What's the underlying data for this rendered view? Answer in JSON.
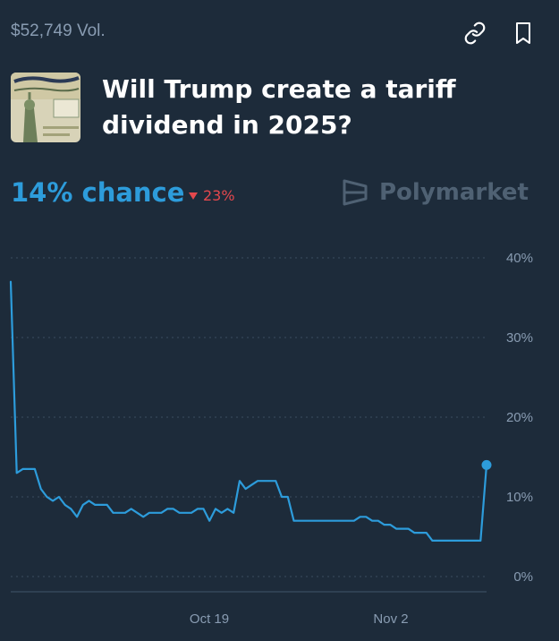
{
  "header": {
    "volume": "$52,749 Vol.",
    "link_icon": "link-icon",
    "bookmark_icon": "bookmark-icon"
  },
  "market": {
    "title": "Will Trump create a tariff dividend in 2025?",
    "chance": "14% chance",
    "change": "23%",
    "change_direction": "down",
    "brand": "Polymarket",
    "thumbnail_icon": "treasury-check-image"
  },
  "colors": {
    "background": "#1d2b3a",
    "accent": "#2d9cdb",
    "negative": "#e5484d",
    "muted": "#899cb2"
  },
  "chart_data": {
    "type": "line",
    "x_ticks": [
      "Oct 19",
      "Nov 2"
    ],
    "y_ticks": [
      "0%",
      "10%",
      "20%",
      "30%",
      "40%"
    ],
    "ylim": [
      0,
      40
    ],
    "grid": true,
    "series": [
      {
        "values": [
          37,
          13,
          13.5,
          13.5,
          13.5,
          11,
          10,
          9.5,
          10,
          9,
          8.5,
          7.5,
          9,
          9.5,
          9,
          9,
          9,
          8,
          8,
          8,
          8.5,
          8,
          7.5,
          8,
          8,
          8,
          8.5,
          8.5,
          8,
          8,
          8,
          8.5,
          8.5,
          7,
          8.5,
          8,
          8.5,
          8,
          12,
          11,
          11.5,
          12,
          12,
          12,
          12,
          10,
          10,
          7,
          7,
          7,
          7,
          7,
          7,
          7,
          7,
          7,
          7,
          7,
          7.5,
          7.5,
          7,
          7,
          6.5,
          6.5,
          6,
          6,
          6,
          5.5,
          5.5,
          5.5,
          4.5,
          4.5,
          4.5,
          4.5,
          4.5,
          4.5,
          4.5,
          4.5,
          4.5,
          14
        ]
      }
    ],
    "end_marker_value": 14
  }
}
